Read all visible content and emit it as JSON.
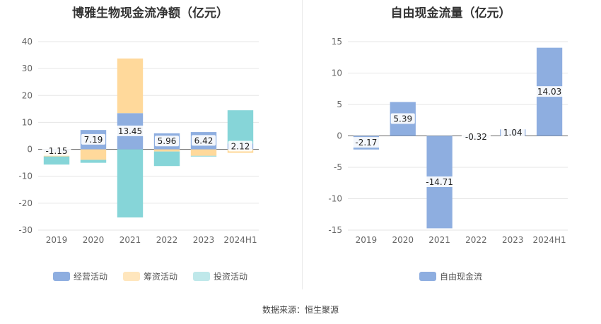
{
  "chart_data": [
    {
      "type": "bar",
      "stacked": true,
      "title": "博雅生物现金流净额（亿元）",
      "categories": [
        "2019",
        "2020",
        "2021",
        "2022",
        "2023",
        "2024H1"
      ],
      "ylim": [
        -30,
        40
      ],
      "yticks": [
        -30,
        -20,
        -10,
        0,
        10,
        20,
        30,
        40
      ],
      "grid": true,
      "legend_position": "bottom",
      "series": [
        {
          "name": "经营活动",
          "color": "#8eaee0",
          "values": [
            -1.15,
            7.19,
            13.45,
            5.96,
            6.42,
            2.12
          ]
        },
        {
          "name": "筹资活动",
          "color": "#ffd99b",
          "values": [
            -1.5,
            -3.9,
            20.3,
            -0.8,
            -2.4,
            -1.3
          ]
        },
        {
          "name": "投资活动",
          "color": "#86d5d8",
          "values": [
            -3.0,
            -1.1,
            -25.3,
            -5.4,
            -0.1,
            12.4
          ]
        }
      ],
      "data_labels": [
        "-1.15",
        "7.19",
        "13.45",
        "5.96",
        "6.42",
        "2.12"
      ]
    },
    {
      "type": "bar",
      "title": "自由现金流量（亿元）",
      "categories": [
        "2019",
        "2020",
        "2021",
        "2022",
        "2023",
        "2024H1"
      ],
      "ylim": [
        -15,
        15
      ],
      "yticks": [
        -15,
        -10,
        -5,
        0,
        5,
        10,
        15
      ],
      "grid": true,
      "legend_position": "bottom",
      "series": [
        {
          "name": "自由现金流",
          "color": "#8eaee0",
          "values": [
            -2.17,
            5.39,
            -14.71,
            -0.32,
            1.04,
            14.03
          ]
        }
      ],
      "data_labels": [
        "-2.17",
        "5.39",
        "-14.71",
        "-0.32",
        "1.04",
        "14.03"
      ]
    }
  ],
  "footer": {
    "source": "数据来源：恒生聚源"
  }
}
